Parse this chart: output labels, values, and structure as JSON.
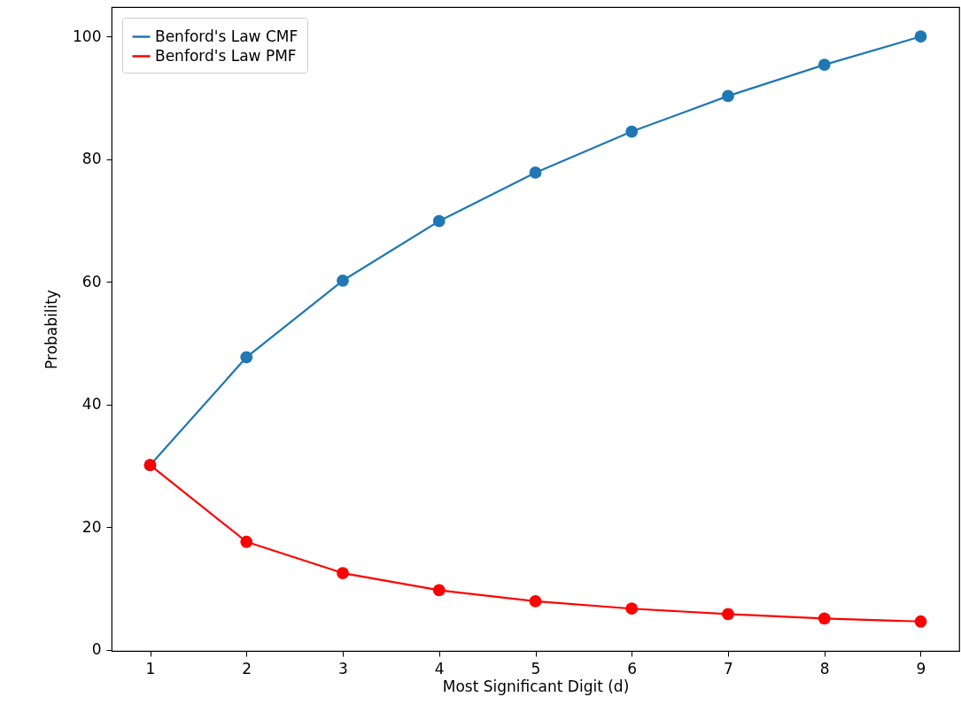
{
  "chart_data": {
    "type": "line",
    "xlabel": "Most Significant Digit (d)",
    "ylabel": "Probability",
    "x": [
      1,
      2,
      3,
      4,
      5,
      6,
      7,
      8,
      9
    ],
    "series": [
      {
        "name": "Benford's Law CMF",
        "color": "#1f77b4",
        "values": [
          30.1,
          47.7,
          60.2,
          69.9,
          77.8,
          84.5,
          90.3,
          95.4,
          100
        ]
      },
      {
        "name": "Benford's Law PMF",
        "color": "#ff0000",
        "values": [
          30.1,
          17.6,
          12.5,
          9.7,
          7.9,
          6.7,
          5.8,
          5.1,
          4.6
        ]
      }
    ],
    "xlim": [
      0.6,
      9.4
    ],
    "xticks": [
      1,
      2,
      3,
      4,
      5,
      6,
      7,
      8,
      9
    ],
    "ylim": [
      -0.2,
      104.8
    ],
    "yticks": [
      0,
      20,
      40,
      60,
      80,
      100
    ],
    "grid": false,
    "legend": "top left",
    "marker": "circle",
    "line_style": "solid"
  }
}
